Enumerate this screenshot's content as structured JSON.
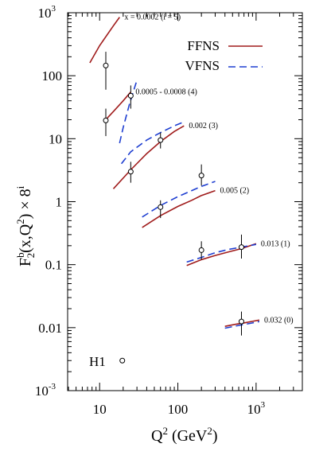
{
  "chart_data": {
    "type": "line",
    "xlabel": "Q",
    "xlabel_sup": "2",
    "xlabel_unit": "(GeV",
    "xlabel_unit_sup": "2",
    "xlabel_unit_close": ")",
    "ylabel_parts": {
      "F": "F",
      "sup_b": "b",
      "sub_2": "2",
      "args": "(x,Q",
      "q_sup": "2",
      "close": ") × 8",
      "sup_i": "i"
    },
    "xscale": "log",
    "yscale": "log",
    "xlim": [
      3.9,
      3900
    ],
    "ylim": [
      0.001,
      1000
    ],
    "x_ticks": [
      {
        "value": 10,
        "base": "10",
        "exp": ""
      },
      {
        "value": 100,
        "base": "100",
        "exp": ""
      },
      {
        "value": 1000,
        "base": "10",
        "exp": "3"
      }
    ],
    "y_ticks": [
      {
        "value": 1000,
        "base": "10",
        "exp": "3"
      },
      {
        "value": 100,
        "base": "100",
        "exp": ""
      },
      {
        "value": 10,
        "base": "10",
        "exp": ""
      },
      {
        "value": 1,
        "base": "1",
        "exp": ""
      },
      {
        "value": 0.1,
        "base": "0.1",
        "exp": ""
      },
      {
        "value": 0.01,
        "base": "0.01",
        "exp": ""
      },
      {
        "value": 0.001,
        "base": "10",
        "exp": "-3"
      }
    ],
    "legend": [
      {
        "label": "FFNS",
        "color": "#a01c1c",
        "dash": "solid"
      },
      {
        "label": "VFNS",
        "color": "#1f3fd1",
        "dash": "dashed"
      }
    ],
    "legend_position": "top-right",
    "data_legend": {
      "label": "H1",
      "x": 19.5,
      "y": 0.003
    },
    "bins": [
      {
        "annotation": "x = 0.0002 (i = 5)",
        "ffns": [
          [
            7.5,
            160
          ],
          [
            10,
            300
          ],
          [
            15,
            620
          ],
          [
            18,
            850
          ]
        ],
        "vfns": [],
        "points": [
          {
            "x": 12,
            "y": 145,
            "ylo": 60,
            "yhi": 240
          }
        ]
      },
      {
        "annotation": "0.0005 - 0.0008 (4)",
        "ffns": [
          [
            11.5,
            19
          ],
          [
            15,
            27
          ],
          [
            20,
            40
          ],
          [
            25,
            55
          ]
        ],
        "vfns": [
          [
            18,
            8.5
          ],
          [
            20,
            15
          ],
          [
            24,
            35
          ],
          [
            28,
            65
          ],
          [
            30,
            85
          ]
        ],
        "points": [
          {
            "x": 12,
            "y": 19.5,
            "ylo": 11,
            "yhi": 30
          },
          {
            "x": 25,
            "y": 48,
            "ylo": 30,
            "yhi": 70
          }
        ]
      },
      {
        "annotation": "0.002 (3)",
        "ffns": [
          [
            15,
            1.6
          ],
          [
            25,
            3.2
          ],
          [
            40,
            5.8
          ],
          [
            60,
            9
          ],
          [
            90,
            13
          ],
          [
            120,
            16
          ]
        ],
        "vfns": [
          [
            19,
            4
          ],
          [
            25,
            6.2
          ],
          [
            40,
            9.5
          ],
          [
            60,
            12.5
          ],
          [
            90,
            16
          ],
          [
            120,
            18.5
          ]
        ],
        "points": [
          {
            "x": 25,
            "y": 3.0,
            "ylo": 2.0,
            "yhi": 4.3
          },
          {
            "x": 60,
            "y": 9.5,
            "ylo": 7.0,
            "yhi": 12.5
          }
        ]
      },
      {
        "annotation": "0.005 (2)",
        "ffns": [
          [
            35,
            0.39
          ],
          [
            60,
            0.6
          ],
          [
            100,
            0.84
          ],
          [
            150,
            1.05
          ],
          [
            200,
            1.25
          ],
          [
            300,
            1.5
          ]
        ],
        "vfns": [
          [
            35,
            0.57
          ],
          [
            60,
            0.87
          ],
          [
            100,
            1.2
          ],
          [
            150,
            1.5
          ],
          [
            200,
            1.75
          ],
          [
            300,
            2.1
          ]
        ],
        "points": [
          {
            "x": 60,
            "y": 0.82,
            "ylo": 0.55,
            "yhi": 1.05
          },
          {
            "x": 200,
            "y": 2.6,
            "ylo": 1.8,
            "yhi": 3.9
          }
        ]
      },
      {
        "annotation": "0.013 (1)",
        "ffns": [
          [
            130,
            0.097
          ],
          [
            200,
            0.12
          ],
          [
            300,
            0.14
          ],
          [
            450,
            0.16
          ],
          [
            650,
            0.18
          ],
          [
            1000,
            0.215
          ]
        ],
        "vfns": [
          [
            130,
            0.11
          ],
          [
            200,
            0.13
          ],
          [
            300,
            0.155
          ],
          [
            450,
            0.175
          ],
          [
            650,
            0.19
          ],
          [
            1000,
            0.21
          ]
        ],
        "points": [
          {
            "x": 200,
            "y": 0.17,
            "ylo": 0.12,
            "yhi": 0.235
          },
          {
            "x": 650,
            "y": 0.19,
            "ylo": 0.125,
            "yhi": 0.3
          }
        ]
      },
      {
        "annotation": "0.032 (0)",
        "ffns": [
          [
            400,
            0.0105
          ],
          [
            550,
            0.0113
          ],
          [
            700,
            0.0119
          ],
          [
            900,
            0.0126
          ],
          [
            1100,
            0.0132
          ]
        ],
        "vfns": [
          [
            400,
            0.0098
          ],
          [
            550,
            0.0106
          ],
          [
            700,
            0.0112
          ],
          [
            900,
            0.0119
          ],
          [
            1100,
            0.0125
          ]
        ],
        "points": [
          {
            "x": 650,
            "y": 0.0125,
            "ylo": 0.0075,
            "yhi": 0.018
          }
        ]
      }
    ]
  }
}
